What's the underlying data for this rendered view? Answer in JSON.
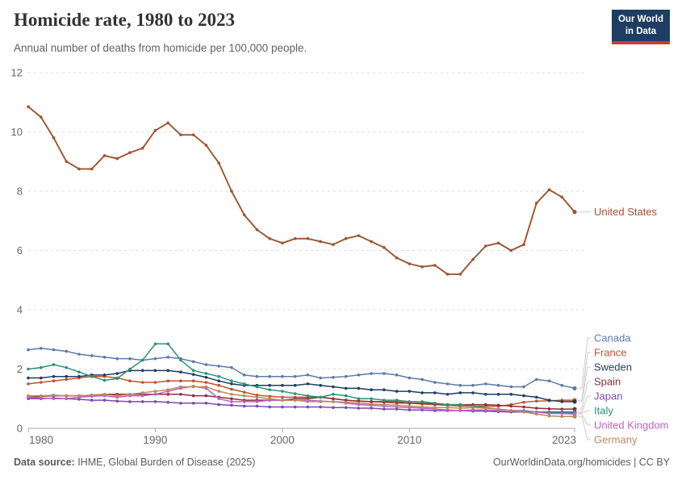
{
  "header": {
    "title": "Homicide rate, 1980 to 2023",
    "subtitle": "Annual number of deaths from homicide per 100,000 people.",
    "logo": {
      "line1": "Our World",
      "line2": "in Data",
      "bg_color": "#1d3d63",
      "stripe_color": "#cc3b33"
    }
  },
  "footer": {
    "source_label": "Data source:",
    "source_text": " IHME, Global Burden of Disease (2025)",
    "credit": "OurWorldinData.org/homicides | CC BY"
  },
  "chart_data": {
    "type": "line",
    "title": "Homicide rate, 1980 to 2023",
    "subtitle": "Annual number of deaths from homicide per 100,000 people.",
    "xlabel": "",
    "ylabel": "",
    "grid": true,
    "legend_position": "right",
    "xlim": [
      1980,
      2023
    ],
    "ylim": [
      0,
      12
    ],
    "xticks": [
      1980,
      1990,
      2000,
      2010,
      2023
    ],
    "yticks": [
      0,
      2,
      4,
      6,
      8,
      10,
      12
    ],
    "x": [
      1980,
      1981,
      1982,
      1983,
      1984,
      1985,
      1986,
      1987,
      1988,
      1989,
      1990,
      1991,
      1992,
      1993,
      1994,
      1995,
      1996,
      1997,
      1998,
      1999,
      2000,
      2001,
      2002,
      2003,
      2004,
      2005,
      2006,
      2007,
      2008,
      2009,
      2010,
      2011,
      2012,
      2013,
      2014,
      2015,
      2016,
      2017,
      2018,
      2019,
      2020,
      2021,
      2022,
      2023
    ],
    "series": [
      {
        "name": "United States",
        "color": "#9E5430",
        "values": [
          10.85,
          10.5,
          9.8,
          9.0,
          8.75,
          8.75,
          9.2,
          9.1,
          9.3,
          9.45,
          10.05,
          10.3,
          9.9,
          9.9,
          9.55,
          8.95,
          8.0,
          7.2,
          6.7,
          6.4,
          6.25,
          6.4,
          6.4,
          6.3,
          6.2,
          6.4,
          6.5,
          6.3,
          6.1,
          5.75,
          5.55,
          5.45,
          5.5,
          5.2,
          5.2,
          5.7,
          6.15,
          6.25,
          6.0,
          6.2,
          7.6,
          8.05,
          7.8,
          7.3
        ]
      },
      {
        "name": "Canada",
        "color": "#5B7BA8",
        "values": [
          2.65,
          2.7,
          2.65,
          2.6,
          2.5,
          2.45,
          2.4,
          2.35,
          2.35,
          2.3,
          2.35,
          2.4,
          2.35,
          2.25,
          2.15,
          2.1,
          2.05,
          1.8,
          1.75,
          1.75,
          1.75,
          1.75,
          1.8,
          1.7,
          1.72,
          1.75,
          1.8,
          1.85,
          1.85,
          1.8,
          1.7,
          1.65,
          1.55,
          1.5,
          1.45,
          1.45,
          1.5,
          1.45,
          1.4,
          1.4,
          1.65,
          1.6,
          1.45,
          1.35
        ]
      },
      {
        "name": "France",
        "color": "#C4512C",
        "values": [
          1.5,
          1.55,
          1.6,
          1.65,
          1.7,
          1.75,
          1.75,
          1.7,
          1.6,
          1.55,
          1.55,
          1.6,
          1.6,
          1.6,
          1.55,
          1.45,
          1.32,
          1.22,
          1.12,
          1.08,
          1.05,
          1.05,
          1.05,
          1.05,
          1.0,
          0.95,
          0.92,
          0.9,
          0.88,
          0.85,
          0.85,
          0.82,
          0.8,
          0.78,
          0.75,
          0.75,
          0.75,
          0.75,
          0.8,
          0.88,
          0.92,
          0.93,
          0.95,
          0.95
        ]
      },
      {
        "name": "Sweden",
        "color": "#1E3E63",
        "values": [
          1.7,
          1.7,
          1.75,
          1.75,
          1.75,
          1.8,
          1.8,
          1.85,
          1.95,
          1.95,
          1.95,
          1.95,
          1.9,
          1.82,
          1.72,
          1.6,
          1.5,
          1.45,
          1.45,
          1.45,
          1.45,
          1.45,
          1.5,
          1.45,
          1.4,
          1.35,
          1.35,
          1.3,
          1.3,
          1.25,
          1.25,
          1.2,
          1.2,
          1.15,
          1.2,
          1.2,
          1.15,
          1.15,
          1.15,
          1.1,
          1.05,
          0.95,
          0.9,
          0.9
        ]
      },
      {
        "name": "Spain",
        "color": "#8C3039",
        "values": [
          1.05,
          1.08,
          1.1,
          1.1,
          1.1,
          1.12,
          1.15,
          1.15,
          1.15,
          1.15,
          1.15,
          1.15,
          1.15,
          1.1,
          1.1,
          1.05,
          1.0,
          0.95,
          0.95,
          0.95,
          0.95,
          1.0,
          1.0,
          1.05,
          1.0,
          0.95,
          0.92,
          0.9,
          0.9,
          0.9,
          0.85,
          0.85,
          0.82,
          0.8,
          0.8,
          0.8,
          0.8,
          0.78,
          0.75,
          0.72,
          0.68,
          0.66,
          0.65,
          0.65
        ]
      },
      {
        "name": "Japan",
        "color": "#8048B0",
        "values": [
          1.0,
          1.0,
          1.02,
          1.0,
          0.98,
          0.95,
          0.95,
          0.92,
          0.9,
          0.9,
          0.9,
          0.88,
          0.85,
          0.85,
          0.85,
          0.8,
          0.78,
          0.75,
          0.75,
          0.72,
          0.72,
          0.72,
          0.72,
          0.72,
          0.7,
          0.7,
          0.68,
          0.68,
          0.65,
          0.65,
          0.62,
          0.62,
          0.6,
          0.6,
          0.6,
          0.58,
          0.58,
          0.56,
          0.55,
          0.55,
          0.55,
          0.55,
          0.55,
          0.55
        ]
      },
      {
        "name": "Italy",
        "color": "#2E9276",
        "values": [
          2.0,
          2.05,
          2.15,
          2.05,
          1.9,
          1.75,
          1.62,
          1.68,
          2.0,
          2.3,
          2.85,
          2.85,
          2.3,
          1.95,
          1.85,
          1.75,
          1.6,
          1.5,
          1.4,
          1.3,
          1.25,
          1.17,
          1.1,
          1.05,
          1.15,
          1.1,
          1.0,
          1.0,
          0.95,
          0.95,
          0.9,
          0.9,
          0.85,
          0.8,
          0.8,
          0.75,
          0.7,
          0.65,
          0.6,
          0.6,
          0.55,
          0.52,
          0.52,
          0.52
        ]
      },
      {
        "name": "United Kingdom",
        "color": "#C05EC5",
        "values": [
          1.05,
          1.03,
          1.0,
          1.0,
          1.05,
          1.08,
          1.1,
          1.05,
          1.1,
          1.1,
          1.15,
          1.25,
          1.35,
          1.42,
          1.35,
          1.0,
          0.9,
          0.9,
          0.9,
          0.95,
          0.95,
          0.95,
          0.95,
          0.92,
          0.9,
          0.85,
          0.8,
          0.78,
          0.75,
          0.72,
          0.7,
          0.68,
          0.65,
          0.62,
          0.6,
          0.62,
          0.62,
          0.6,
          0.6,
          0.58,
          0.55,
          0.5,
          0.5,
          0.48
        ]
      },
      {
        "name": "Germany",
        "color": "#BA8A5B",
        "values": [
          1.1,
          1.1,
          1.12,
          1.1,
          1.1,
          1.12,
          1.15,
          1.1,
          1.15,
          1.2,
          1.25,
          1.3,
          1.4,
          1.4,
          1.4,
          1.25,
          1.15,
          1.1,
          1.05,
          1.0,
          0.95,
          0.95,
          0.9,
          0.9,
          0.9,
          0.88,
          0.85,
          0.82,
          0.8,
          0.78,
          0.75,
          0.72,
          0.7,
          0.7,
          0.68,
          0.7,
          0.68,
          0.65,
          0.6,
          0.55,
          0.48,
          0.42,
          0.4,
          0.4
        ]
      }
    ],
    "legend_order": [
      "United States",
      "Canada",
      "France",
      "Sweden",
      "Spain",
      "Japan",
      "Italy",
      "United Kingdom",
      "Germany"
    ]
  }
}
